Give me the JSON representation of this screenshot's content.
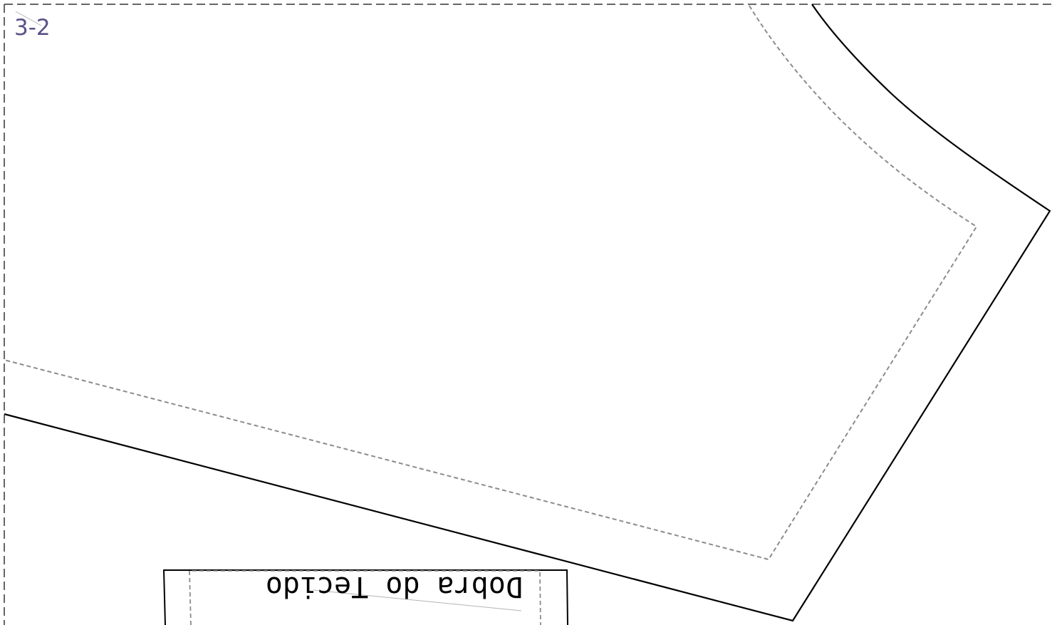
{
  "page": {
    "label": "3-2"
  },
  "fold": {
    "label": "Dobra do Tecido"
  },
  "colors": {
    "page_label": "#5a5188",
    "cut_line": "#000000",
    "sewing_line": "#8c8c8c",
    "page_border": "#333333",
    "fold_hint": "#b4b4b4"
  }
}
